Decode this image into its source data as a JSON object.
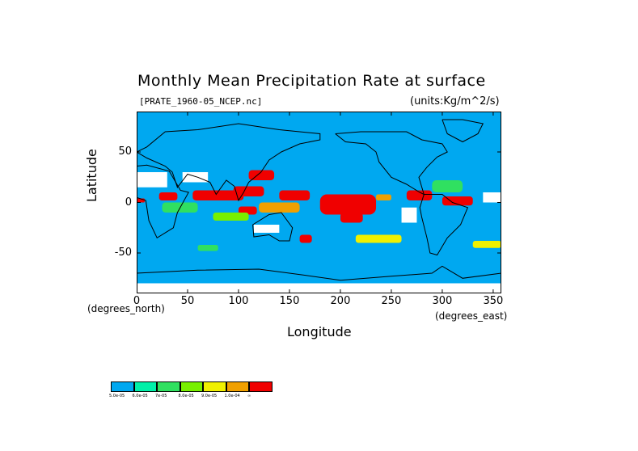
{
  "chart_data": {
    "type": "heatmap",
    "title": "Monthly Mean Precipitation Rate at surface",
    "source_label": "[PRATE_1960-05_NCEP.nc]",
    "units_label": "(units:Kg/m^2/s)",
    "xlabel": "Longitude",
    "ylabel": "Latitude",
    "x_units_label": "(degrees_east)",
    "y_units_label": "(degrees_north)",
    "xlim": [
      0,
      358
    ],
    "ylim": [
      -90,
      90
    ],
    "x_ticks": [
      "0",
      "50",
      "100",
      "150",
      "200",
      "250",
      "300",
      "350"
    ],
    "x_tick_values": [
      0,
      50,
      100,
      150,
      200,
      250,
      300,
      350
    ],
    "y_ticks": [
      "50",
      "0",
      "-50"
    ],
    "y_tick_values": [
      50,
      0,
      -50
    ],
    "grid": false,
    "background_color": "#00a8f0",
    "colorbar": {
      "colors": [
        "#00a8f0",
        "#00f0a8",
        "#30e060",
        "#78f000",
        "#f0f000",
        "#f0a000",
        "#f00000"
      ],
      "labels": [
        "5.0e-05",
        "6.0e-05",
        "7e-05",
        "8.0e-05",
        "9.0e-05",
        "1.0e-04",
        "∞"
      ]
    },
    "regions": [
      {
        "level": 6,
        "lon": [
          180,
          235
        ],
        "lat": [
          -12,
          8
        ]
      },
      {
        "level": 6,
        "lon": [
          200,
          222
        ],
        "lat": [
          -20,
          -10
        ]
      },
      {
        "level": 6,
        "lon": [
          140,
          170
        ],
        "lat": [
          2,
          12
        ]
      },
      {
        "level": 6,
        "lon": [
          55,
          105
        ],
        "lat": [
          2,
          12
        ]
      },
      {
        "level": 6,
        "lon": [
          22,
          40
        ],
        "lat": [
          2,
          10
        ]
      },
      {
        "level": 6,
        "lon": [
          110,
          135
        ],
        "lat": [
          22,
          32
        ]
      },
      {
        "level": 6,
        "lon": [
          95,
          125
        ],
        "lat": [
          6,
          16
        ]
      },
      {
        "level": 6,
        "lon": [
          265,
          290
        ],
        "lat": [
          2,
          12
        ]
      },
      {
        "level": 6,
        "lon": [
          300,
          330
        ],
        "lat": [
          -3,
          6
        ]
      },
      {
        "level": 6,
        "lon": [
          160,
          172
        ],
        "lat": [
          -40,
          -32
        ]
      },
      {
        "level": 6,
        "lon": [
          100,
          118
        ],
        "lat": [
          -12,
          -4
        ]
      },
      {
        "level": 6,
        "lon": [
          0,
          8
        ],
        "lat": [
          0,
          4
        ]
      },
      {
        "level": 5,
        "lon": [
          120,
          160
        ],
        "lat": [
          -10,
          0
        ]
      },
      {
        "level": 5,
        "lon": [
          235,
          250
        ],
        "lat": [
          2,
          8
        ]
      },
      {
        "level": 4,
        "lon": [
          215,
          260
        ],
        "lat": [
          -40,
          -32
        ]
      },
      {
        "level": 4,
        "lon": [
          330,
          358
        ],
        "lat": [
          -45,
          -38
        ]
      },
      {
        "level": 3,
        "lon": [
          75,
          110
        ],
        "lat": [
          -18,
          -10
        ]
      },
      {
        "level": 2,
        "lon": [
          25,
          60
        ],
        "lat": [
          -10,
          0
        ]
      },
      {
        "level": 2,
        "lon": [
          290,
          320
        ],
        "lat": [
          10,
          22
        ]
      },
      {
        "level": 2,
        "lon": [
          60,
          80
        ],
        "lat": [
          -48,
          -42
        ]
      }
    ],
    "missing_regions": [
      {
        "lon": [
          0,
          30
        ],
        "lat": [
          15,
          30
        ]
      },
      {
        "lon": [
          45,
          70
        ],
        "lat": [
          20,
          30
        ]
      },
      {
        "lon": [
          260,
          275
        ],
        "lat": [
          -20,
          -5
        ]
      },
      {
        "lon": [
          340,
          358
        ],
        "lat": [
          0,
          10
        ]
      },
      {
        "lon": [
          115,
          140
        ],
        "lat": [
          -30,
          -22
        ]
      },
      {
        "lon": [
          0,
          358
        ],
        "lat": [
          -90,
          -80
        ]
      }
    ],
    "coastlines": [
      {
        "name": "eurasia",
        "points": [
          [
            0,
            50
          ],
          [
            10,
            55
          ],
          [
            28,
            70
          ],
          [
            60,
            72
          ],
          [
            100,
            78
          ],
          [
            140,
            72
          ],
          [
            180,
            68
          ],
          [
            180,
            62
          ],
          [
            160,
            58
          ],
          [
            142,
            50
          ],
          [
            130,
            42
          ],
          [
            122,
            30
          ],
          [
            110,
            20
          ],
          [
            105,
            10
          ],
          [
            100,
            2
          ],
          [
            96,
            16
          ],
          [
            88,
            22
          ],
          [
            78,
            8
          ],
          [
            72,
            20
          ],
          [
            60,
            25
          ],
          [
            50,
            28
          ],
          [
            40,
            15
          ],
          [
            35,
            30
          ],
          [
            28,
            36
          ],
          [
            10,
            44
          ],
          [
            0,
            50
          ]
        ]
      },
      {
        "name": "africa",
        "points": [
          [
            0,
            36
          ],
          [
            10,
            37
          ],
          [
            32,
            31
          ],
          [
            43,
            12
          ],
          [
            51,
            10
          ],
          [
            40,
            -10
          ],
          [
            36,
            -25
          ],
          [
            20,
            -35
          ],
          [
            12,
            -18
          ],
          [
            9,
            2
          ],
          [
            0,
            5
          ],
          [
            -5,
            5
          ]
        ]
      },
      {
        "name": "australia",
        "points": [
          [
            114,
            -22
          ],
          [
            130,
            -12
          ],
          [
            142,
            -10
          ],
          [
            153,
            -25
          ],
          [
            150,
            -38
          ],
          [
            140,
            -38
          ],
          [
            130,
            -32
          ],
          [
            115,
            -34
          ],
          [
            114,
            -22
          ]
        ]
      },
      {
        "name": "north-america",
        "points": [
          [
            195,
            68
          ],
          [
            205,
            60
          ],
          [
            225,
            58
          ],
          [
            235,
            50
          ],
          [
            238,
            40
          ],
          [
            250,
            25
          ],
          [
            265,
            18
          ],
          [
            278,
            10
          ],
          [
            282,
            8
          ],
          [
            277,
            25
          ],
          [
            285,
            35
          ],
          [
            295,
            45
          ],
          [
            305,
            50
          ],
          [
            300,
            58
          ],
          [
            280,
            62
          ],
          [
            265,
            70
          ],
          [
            240,
            70
          ],
          [
            220,
            70
          ],
          [
            195,
            68
          ]
        ]
      },
      {
        "name": "south-america",
        "points": [
          [
            282,
            8
          ],
          [
            300,
            8
          ],
          [
            310,
            0
          ],
          [
            325,
            -5
          ],
          [
            318,
            -22
          ],
          [
            305,
            -35
          ],
          [
            295,
            -52
          ],
          [
            288,
            -50
          ],
          [
            285,
            -35
          ],
          [
            280,
            -15
          ],
          [
            278,
            -5
          ],
          [
            282,
            8
          ]
        ]
      },
      {
        "name": "antarctica",
        "points": [
          [
            0,
            -70
          ],
          [
            60,
            -67
          ],
          [
            120,
            -66
          ],
          [
            165,
            -72
          ],
          [
            200,
            -77
          ],
          [
            250,
            -73
          ],
          [
            290,
            -70
          ],
          [
            300,
            -63
          ],
          [
            320,
            -75
          ],
          [
            358,
            -70
          ]
        ]
      },
      {
        "name": "greenland",
        "points": [
          [
            300,
            82
          ],
          [
            320,
            82
          ],
          [
            340,
            78
          ],
          [
            335,
            68
          ],
          [
            320,
            60
          ],
          [
            305,
            68
          ],
          [
            300,
            82
          ]
        ]
      }
    ]
  }
}
